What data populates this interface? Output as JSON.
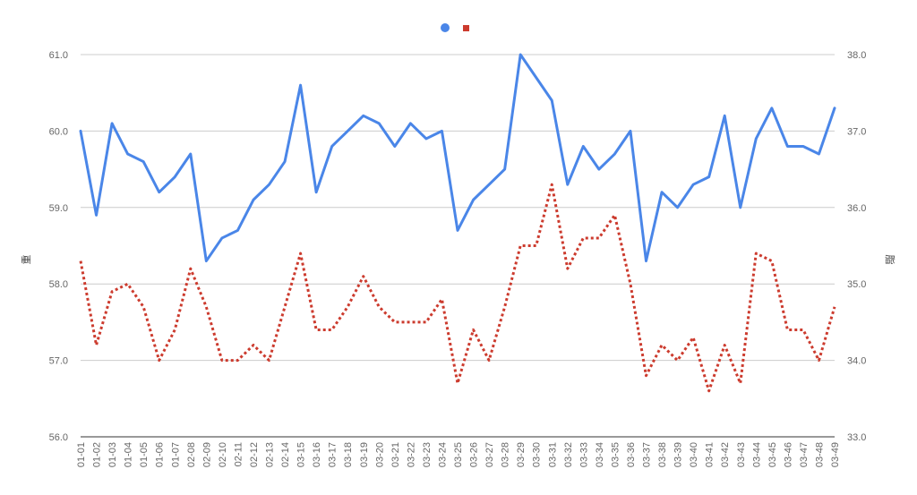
{
  "chart_data": {
    "type": "line",
    "title": "",
    "x": [
      "01-01",
      "01-02",
      "01-03",
      "01-04",
      "01-05",
      "01-06",
      "01-07",
      "02-08",
      "02-09",
      "02-10",
      "02-11",
      "02-12",
      "02-13",
      "02-14",
      "03-15",
      "03-16",
      "03-17",
      "03-18",
      "03-19",
      "03-20",
      "03-21",
      "03-22",
      "03-23",
      "03-24",
      "03-25",
      "03-26",
      "03-27",
      "03-28",
      "03-29",
      "03-30",
      "03-31",
      "03-32",
      "03-33",
      "03-34",
      "03-35",
      "03-36",
      "03-37",
      "03-38",
      "03-39",
      "03-40",
      "03-41",
      "03-42",
      "03-43",
      "03-44",
      "03-45",
      "03-46",
      "03-47",
      "03-48",
      "03-49"
    ],
    "series": [
      {
        "name": "",
        "axis": "left",
        "style": "solid",
        "color": "#4a86e8",
        "marker": "circle",
        "values": [
          60.0,
          58.9,
          60.1,
          59.7,
          59.6,
          59.2,
          59.4,
          59.7,
          58.3,
          58.6,
          58.7,
          59.1,
          59.3,
          59.6,
          60.6,
          59.2,
          59.8,
          60.0,
          60.2,
          60.1,
          59.8,
          60.1,
          59.9,
          60.0,
          58.7,
          59.1,
          59.3,
          59.5,
          61.0,
          60.7,
          60.4,
          59.3,
          59.8,
          59.5,
          59.7,
          60.0,
          58.3,
          59.2,
          59.0,
          59.3,
          59.4,
          60.2,
          59.0,
          59.9,
          60.3,
          59.8,
          59.8,
          59.7,
          60.3
        ]
      },
      {
        "name": "",
        "axis": "right",
        "style": "dotted",
        "color": "#cc3b2e",
        "marker": "square",
        "values": [
          35.3,
          34.2,
          34.9,
          35.0,
          34.7,
          34.0,
          34.4,
          35.2,
          34.7,
          34.0,
          34.0,
          34.2,
          34.0,
          34.7,
          35.4,
          34.4,
          34.4,
          34.7,
          35.1,
          34.7,
          34.5,
          34.5,
          34.5,
          34.8,
          33.7,
          34.4,
          34.0,
          34.7,
          35.5,
          35.5,
          36.3,
          35.2,
          35.6,
          35.6,
          35.9,
          35.0,
          33.8,
          34.2,
          34.0,
          34.3,
          33.6,
          34.2,
          33.7,
          35.4,
          35.3,
          34.4,
          34.4,
          34.0,
          34.7
        ]
      }
    ],
    "ylabel_left": "重",
    "ylabel_right": "脂",
    "ylim_left": [
      56.0,
      61.0
    ],
    "ylim_right": [
      33.0,
      38.0
    ],
    "yticks_left": [
      "56.0",
      "57.0",
      "58.0",
      "59.0",
      "60.0",
      "61.0"
    ],
    "yticks_right": [
      "33.0",
      "34.0",
      "35.0",
      "36.0",
      "37.0",
      "38.0"
    ],
    "grid": true,
    "legend_position": "top-center",
    "colors": {
      "gridline": "#cccccc",
      "baseline": "#333333",
      "tick_text": "#666666",
      "axis_label": "#444444"
    }
  }
}
